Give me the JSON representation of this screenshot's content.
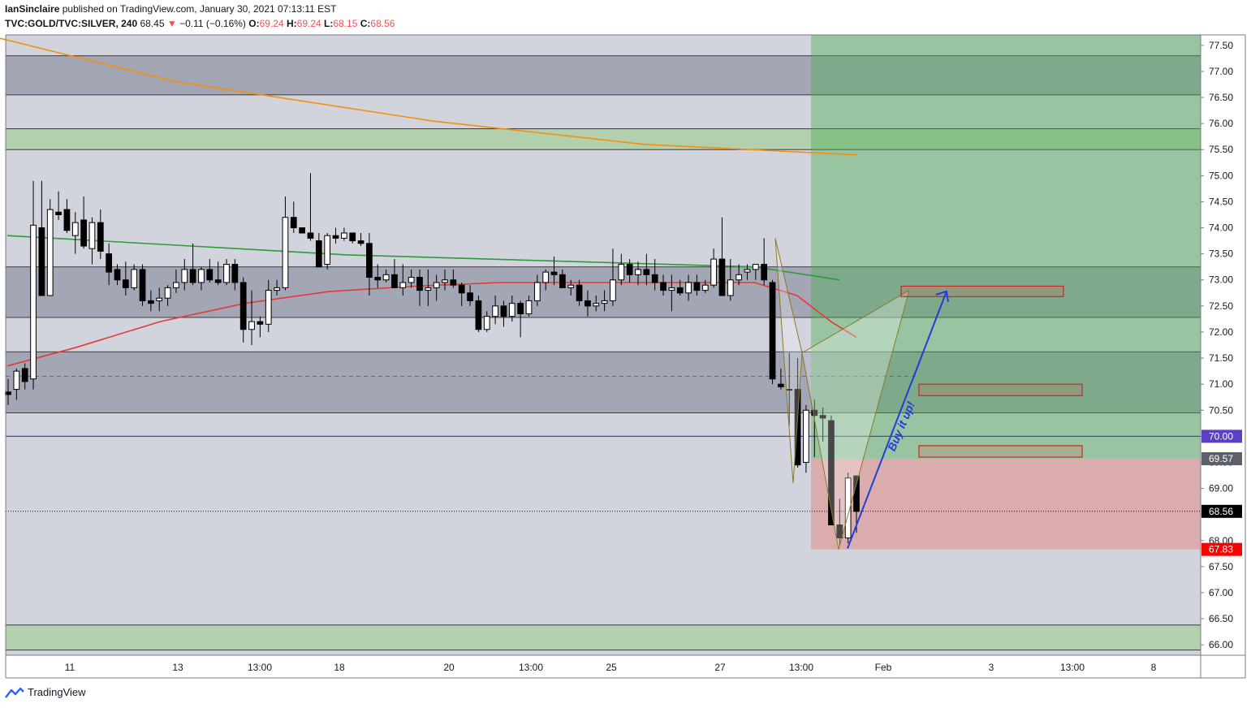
{
  "header": {
    "author": "IanSinclaire",
    "published_text": "published on TradingView.com, January 30, 2021 07:13:11 EST",
    "symbol": "TVC:GOLD/TVC:SILVER, 240",
    "last": "68.45",
    "change_arrow": "▼",
    "change": "−0.11 (−0.16%)",
    "o_label": "O:",
    "o_value": "69.24",
    "h_label": "H:",
    "h_value": "69.24",
    "l_label": "L:",
    "l_value": "68.15",
    "c_label": "C:",
    "c_value": "68.56"
  },
  "footer": {
    "brand": "TradingView"
  },
  "chart_data": {
    "type": "candlestick",
    "title": "",
    "ylim": [
      65.8,
      77.7
    ],
    "y_ticks": [
      "77.50",
      "77.00",
      "76.50",
      "76.00",
      "75.50",
      "75.00",
      "74.50",
      "74.00",
      "73.50",
      "73.00",
      "72.50",
      "72.00",
      "71.50",
      "71.00",
      "70.50",
      "70.00",
      "69.50",
      "69.00",
      "68.50",
      "68.00",
      "67.50",
      "67.00",
      "66.50",
      "66.00"
    ],
    "x_ticks": [
      "11",
      "13",
      "13:00",
      "18",
      "20",
      "13:00",
      "25",
      "27",
      "13:00",
      "Feb",
      "3",
      "13:00",
      "8"
    ],
    "price_tags": [
      {
        "value": 70.0,
        "label": "70.00",
        "color": "#5b3fc4"
      },
      {
        "value": 69.57,
        "label": "69.57",
        "color": "#5d606b"
      },
      {
        "value": 68.56,
        "label": "68.56",
        "color": "#000000"
      },
      {
        "value": 67.83,
        "label": "67.83",
        "color": "#ff0000"
      }
    ],
    "zones": [
      {
        "from": 76.55,
        "to": 77.3,
        "color": "gray"
      },
      {
        "from": 75.5,
        "to": 75.9,
        "color": "green"
      },
      {
        "from": 72.28,
        "to": 73.25,
        "color": "gray"
      },
      {
        "from": 70.45,
        "to": 71.62,
        "color": "gray"
      },
      {
        "from": 65.9,
        "to": 66.38,
        "color": "green"
      }
    ],
    "position": {
      "entry": 69.57,
      "target": 77.7,
      "stop": 67.83
    },
    "horizontal_line": 70.0,
    "dashed_level": 71.15,
    "annotation": "Buy it up!",
    "candles_ohlc": [
      [
        70.85,
        71.1,
        70.6,
        70.8
      ],
      [
        70.9,
        71.3,
        70.7,
        71.25
      ],
      [
        71.3,
        71.4,
        70.9,
        71.05
      ],
      [
        71.1,
        74.9,
        70.9,
        74.05
      ],
      [
        74.0,
        74.9,
        72.7,
        72.7
      ],
      [
        72.7,
        74.55,
        72.7,
        74.35
      ],
      [
        74.3,
        74.7,
        74.15,
        74.25
      ],
      [
        74.35,
        74.55,
        73.9,
        73.95
      ],
      [
        73.85,
        74.3,
        73.5,
        74.1
      ],
      [
        74.15,
        74.6,
        73.6,
        73.65
      ],
      [
        73.6,
        74.2,
        73.3,
        74.1
      ],
      [
        74.1,
        74.35,
        73.4,
        73.55
      ],
      [
        73.5,
        73.7,
        72.9,
        73.15
      ],
      [
        73.2,
        73.3,
        72.9,
        73.0
      ],
      [
        73.0,
        73.35,
        72.7,
        72.85
      ],
      [
        72.85,
        73.3,
        72.8,
        73.2
      ],
      [
        73.2,
        73.3,
        72.5,
        72.6
      ],
      [
        72.6,
        72.8,
        72.4,
        72.55
      ],
      [
        72.6,
        72.85,
        72.4,
        72.65
      ],
      [
        72.65,
        72.9,
        72.5,
        72.85
      ],
      [
        72.85,
        73.2,
        72.75,
        72.95
      ],
      [
        72.95,
        73.4,
        72.8,
        73.2
      ],
      [
        73.2,
        73.7,
        72.9,
        72.95
      ],
      [
        72.95,
        73.25,
        72.8,
        73.2
      ],
      [
        73.2,
        73.4,
        72.95,
        73.0
      ],
      [
        73.0,
        73.35,
        72.9,
        72.95
      ],
      [
        72.95,
        73.4,
        72.9,
        73.3
      ],
      [
        73.3,
        73.4,
        72.8,
        72.95
      ],
      [
        72.95,
        73.05,
        71.8,
        72.05
      ],
      [
        72.05,
        72.8,
        71.75,
        72.2
      ],
      [
        72.2,
        72.3,
        71.9,
        72.15
      ],
      [
        72.15,
        73.0,
        72.0,
        72.8
      ],
      [
        72.8,
        73.0,
        72.7,
        72.85
      ],
      [
        72.85,
        74.6,
        72.8,
        74.2
      ],
      [
        74.2,
        74.5,
        73.9,
        74.0
      ],
      [
        74.0,
        74.0,
        73.9,
        73.9
      ],
      [
        73.9,
        75.05,
        73.75,
        73.8
      ],
      [
        73.75,
        73.9,
        73.25,
        73.25
      ],
      [
        73.3,
        73.9,
        73.2,
        73.85
      ],
      [
        73.85,
        74.0,
        73.7,
        73.8
      ],
      [
        73.8,
        74.0,
        73.75,
        73.9
      ],
      [
        73.9,
        73.9,
        73.7,
        73.75
      ],
      [
        73.75,
        73.9,
        73.65,
        73.7
      ],
      [
        73.7,
        73.9,
        72.7,
        73.05
      ],
      [
        73.05,
        73.3,
        72.85,
        73.0
      ],
      [
        73.0,
        73.2,
        72.95,
        73.1
      ],
      [
        73.1,
        73.4,
        72.9,
        72.85
      ],
      [
        72.85,
        73.3,
        72.7,
        72.95
      ],
      [
        72.95,
        73.2,
        72.85,
        73.05
      ],
      [
        73.05,
        73.2,
        72.5,
        72.8
      ],
      [
        72.8,
        73.2,
        72.5,
        72.85
      ],
      [
        72.85,
        73.1,
        72.6,
        72.95
      ],
      [
        72.95,
        73.2,
        72.8,
        73.0
      ],
      [
        73.0,
        73.2,
        72.85,
        72.9
      ],
      [
        72.9,
        72.95,
        72.5,
        72.75
      ],
      [
        72.75,
        72.9,
        72.5,
        72.6
      ],
      [
        72.6,
        72.7,
        72.0,
        72.05
      ],
      [
        72.05,
        72.4,
        72.0,
        72.3
      ],
      [
        72.3,
        72.7,
        72.15,
        72.5
      ],
      [
        72.5,
        72.6,
        72.1,
        72.3
      ],
      [
        72.3,
        72.7,
        72.2,
        72.55
      ],
      [
        72.55,
        72.6,
        71.9,
        72.35
      ],
      [
        72.35,
        72.7,
        72.3,
        72.6
      ],
      [
        72.6,
        73.1,
        72.5,
        72.95
      ],
      [
        72.95,
        73.2,
        72.8,
        73.15
      ],
      [
        73.15,
        73.45,
        72.9,
        73.1
      ],
      [
        73.1,
        73.2,
        72.85,
        72.85
      ],
      [
        72.85,
        73.0,
        72.7,
        72.9
      ],
      [
        72.9,
        73.0,
        72.5,
        72.6
      ],
      [
        72.6,
        72.8,
        72.3,
        72.5
      ],
      [
        72.5,
        72.7,
        72.4,
        72.55
      ],
      [
        72.55,
        72.8,
        72.4,
        72.6
      ],
      [
        72.6,
        73.6,
        72.5,
        73.0
      ],
      [
        73.0,
        73.5,
        72.9,
        73.3
      ],
      [
        73.3,
        73.4,
        72.95,
        73.1
      ],
      [
        73.1,
        73.35,
        72.9,
        73.2
      ],
      [
        73.2,
        73.5,
        72.9,
        73.1
      ],
      [
        73.1,
        73.4,
        72.8,
        72.95
      ],
      [
        72.95,
        73.1,
        72.7,
        72.8
      ],
      [
        72.8,
        73.1,
        72.4,
        72.85
      ],
      [
        72.85,
        73.0,
        72.7,
        72.75
      ],
      [
        72.75,
        73.1,
        72.6,
        72.95
      ],
      [
        72.95,
        73.1,
        72.7,
        72.8
      ],
      [
        72.8,
        73.0,
        72.75,
        72.9
      ],
      [
        72.9,
        73.6,
        72.85,
        73.4
      ],
      [
        73.4,
        74.2,
        72.8,
        72.7
      ],
      [
        72.7,
        73.4,
        72.6,
        73.0
      ],
      [
        73.0,
        73.3,
        72.9,
        73.1
      ],
      [
        73.15,
        73.3,
        73.0,
        73.2
      ],
      [
        73.2,
        73.3,
        73.0,
        73.3
      ],
      [
        73.3,
        73.8,
        72.9,
        73.0
      ],
      [
        72.95,
        73.0,
        71.0,
        71.1
      ],
      [
        71.0,
        71.3,
        70.9,
        70.95
      ],
      [
        70.9,
        71.6,
        70.2,
        70.9
      ],
      [
        70.9,
        71.5,
        69.4,
        69.45
      ],
      [
        69.5,
        70.6,
        69.3,
        70.5
      ],
      [
        70.5,
        70.7,
        69.6,
        70.4
      ],
      [
        70.4,
        70.55,
        69.9,
        70.35
      ],
      [
        70.3,
        70.4,
        68.3,
        68.3
      ],
      [
        68.3,
        68.8,
        67.9,
        68.05
      ],
      [
        68.05,
        69.3,
        67.95,
        69.2
      ],
      [
        69.24,
        69.24,
        68.15,
        68.56
      ]
    ],
    "series": [
      {
        "name": "",
        "color": "#2e9b3a",
        "points": [
          [
            0,
            73.85
          ],
          [
            40,
            73.48
          ],
          [
            88,
            73.25
          ],
          [
            98,
            73.0
          ]
        ]
      },
      {
        "name": "",
        "color": "#e53935",
        "points": [
          [
            0,
            71.35
          ],
          [
            8,
            71.7
          ],
          [
            18,
            72.2
          ],
          [
            28,
            72.55
          ],
          [
            38,
            72.78
          ],
          [
            48,
            72.88
          ],
          [
            58,
            72.95
          ],
          [
            68,
            72.95
          ],
          [
            78,
            72.95
          ],
          [
            88,
            72.95
          ],
          [
            93,
            72.7
          ],
          [
            97,
            72.2
          ],
          [
            100,
            71.9
          ]
        ]
      },
      {
        "name": "",
        "color": "#f5900a",
        "points": [
          [
            -5,
            77.8
          ],
          [
            20,
            76.8
          ],
          [
            50,
            76.05
          ],
          [
            75,
            75.6
          ],
          [
            100,
            75.4
          ]
        ]
      }
    ]
  }
}
